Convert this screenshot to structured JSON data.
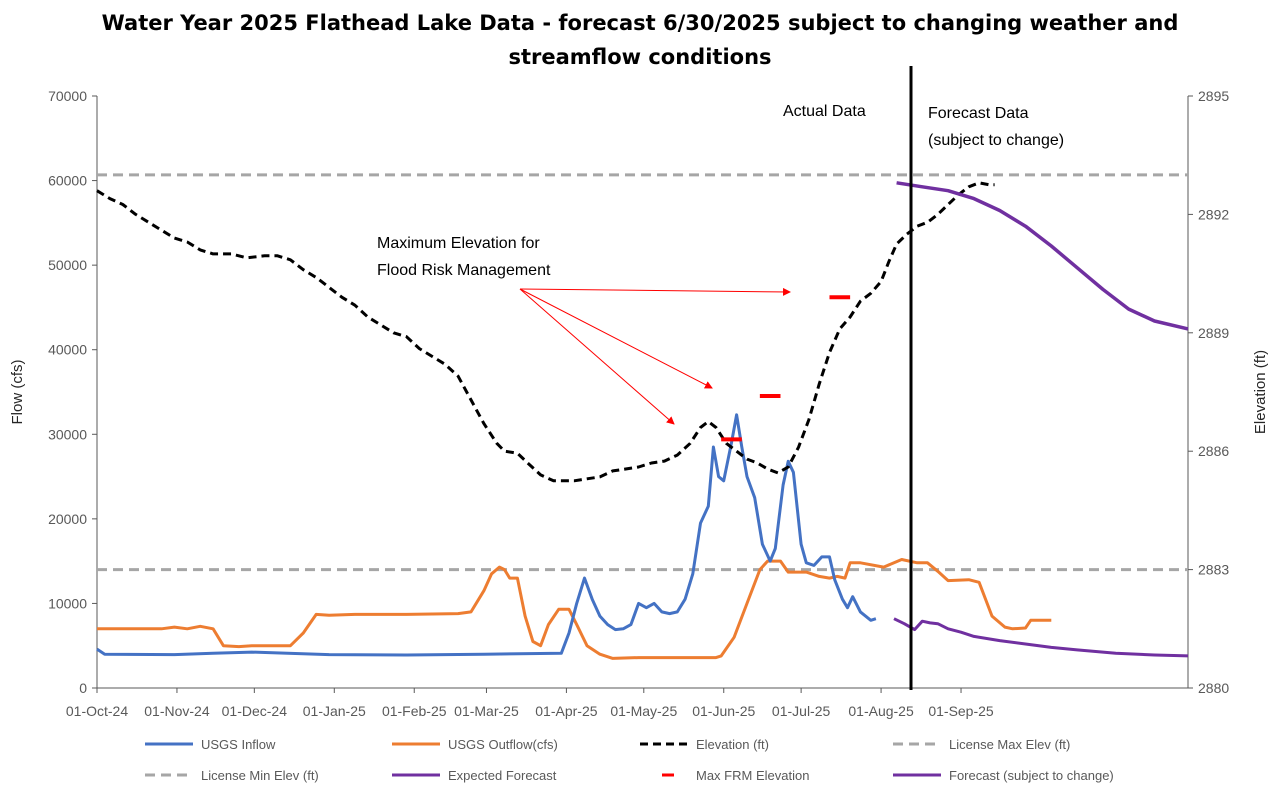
{
  "chart_data": {
    "type": "line",
    "title_line1": "Water Year 2025 Flathead Lake Data - forecast 6/30/2025 subject to changing weather and",
    "title_line2": "streamflow conditions",
    "ylabel": "Flow (cfs)",
    "y2label": "Elevation (ft)",
    "ylim": [
      0,
      70000
    ],
    "y2lim": [
      2880,
      2895
    ],
    "x_ticks": [
      "01-Oct-24",
      "01-Nov-24",
      "01-Dec-24",
      "01-Jan-25",
      "01-Feb-25",
      "01-Mar-25",
      "01-Apr-25",
      "01-May-25",
      "01-Jun-25",
      "01-Jul-25",
      "01-Aug-25",
      "01-Sep-25"
    ],
    "y_ticks": [
      "0",
      "10000",
      "20000",
      "30000",
      "40000",
      "50000",
      "60000",
      "70000"
    ],
    "y2_ticks": [
      "2880",
      "2883",
      "2886",
      "2889",
      "2892",
      "2895"
    ],
    "grid": false,
    "legend_position": "bottom",
    "annotations": {
      "actual": "Actual Data",
      "forecast_line1": "Forecast Data",
      "forecast_line2": "(subject to change)",
      "frm_line1": "Maximum Elevation for",
      "frm_line2": "Flood Risk Management"
    },
    "colors": {
      "inflow": "#4472C4",
      "outflow": "#ED7D31",
      "elevation": "#000000",
      "license": "#A6A6A6",
      "forecast": "#7030A0",
      "frm": "#FF0000"
    },
    "series": [
      {
        "name": "USGS Inflow",
        "axis": "flow",
        "points": [
          [
            0,
            4600
          ],
          [
            3,
            4000
          ],
          [
            30,
            3950
          ],
          [
            45,
            4100
          ],
          [
            60,
            4250
          ],
          [
            90,
            3950
          ],
          [
            120,
            3900
          ],
          [
            150,
            4000
          ],
          [
            180,
            4100
          ],
          [
            183,
            6500
          ],
          [
            186,
            10000
          ],
          [
            189,
            13000
          ],
          [
            192,
            10500
          ],
          [
            195,
            8500
          ],
          [
            198,
            7500
          ],
          [
            201,
            6900
          ],
          [
            204,
            7000
          ],
          [
            207,
            7500
          ],
          [
            210,
            10000
          ],
          [
            213,
            9500
          ],
          [
            216,
            10000
          ],
          [
            219,
            9000
          ],
          [
            222,
            8800
          ],
          [
            225,
            9000
          ],
          [
            228,
            10500
          ],
          [
            231,
            13500
          ],
          [
            234,
            19500
          ],
          [
            237,
            21500
          ],
          [
            239,
            28500
          ],
          [
            241,
            25000
          ],
          [
            243,
            24500
          ],
          [
            246,
            29000
          ],
          [
            248,
            32300
          ],
          [
            250,
            28500
          ],
          [
            252,
            25000
          ],
          [
            255,
            22500
          ],
          [
            258,
            17000
          ],
          [
            261,
            15000
          ],
          [
            263,
            16500
          ],
          [
            266,
            24000
          ],
          [
            268,
            26800
          ],
          [
            270,
            25500
          ],
          [
            273,
            17000
          ],
          [
            275,
            14800
          ],
          [
            278,
            14500
          ],
          [
            281,
            15500
          ],
          [
            284,
            15500
          ],
          [
            286,
            12800
          ],
          [
            289,
            10500
          ],
          [
            291,
            9500
          ],
          [
            293,
            10800
          ],
          [
            296,
            9000
          ],
          [
            300,
            8000
          ],
          [
            302,
            8200
          ]
        ]
      },
      {
        "name": "USGS Outflow(cfs)",
        "axis": "flow",
        "points": [
          [
            0,
            7000
          ],
          [
            5,
            7000
          ],
          [
            25,
            7000
          ],
          [
            30,
            7200
          ],
          [
            35,
            7000
          ],
          [
            40,
            7300
          ],
          [
            45,
            7000
          ],
          [
            49,
            5000
          ],
          [
            55,
            4900
          ],
          [
            60,
            5000
          ],
          [
            75,
            5000
          ],
          [
            80,
            6500
          ],
          [
            85,
            8700
          ],
          [
            90,
            8600
          ],
          [
            100,
            8700
          ],
          [
            120,
            8700
          ],
          [
            140,
            8800
          ],
          [
            145,
            9000
          ],
          [
            150,
            11500
          ],
          [
            153,
            13500
          ],
          [
            156,
            14300
          ],
          [
            158,
            14000
          ],
          [
            160,
            13000
          ],
          [
            163,
            13000
          ],
          [
            166,
            8500
          ],
          [
            169,
            5500
          ],
          [
            172,
            5000
          ],
          [
            175,
            7500
          ],
          [
            179,
            9300
          ],
          [
            183,
            9300
          ],
          [
            186,
            7500
          ],
          [
            190,
            5000
          ],
          [
            195,
            4000
          ],
          [
            200,
            3500
          ],
          [
            210,
            3600
          ],
          [
            220,
            3600
          ],
          [
            240,
            3600
          ],
          [
            242,
            3800
          ],
          [
            247,
            6000
          ],
          [
            252,
            10000
          ],
          [
            257,
            14000
          ],
          [
            260,
            15000
          ],
          [
            265,
            15000
          ],
          [
            268,
            13700
          ],
          [
            275,
            13700
          ],
          [
            280,
            13200
          ],
          [
            284,
            13000
          ],
          [
            287,
            13200
          ],
          [
            290,
            13000
          ],
          [
            292,
            14800
          ],
          [
            296,
            14800
          ],
          [
            305,
            14300
          ],
          [
            312,
            15200
          ],
          [
            318,
            14800
          ],
          [
            322,
            14800
          ],
          [
            326,
            13800
          ],
          [
            330,
            12700
          ],
          [
            338,
            12800
          ],
          [
            342,
            12500
          ],
          [
            347,
            8500
          ],
          [
            352,
            7200
          ],
          [
            355,
            7000
          ],
          [
            360,
            7100
          ],
          [
            362,
            8000
          ],
          [
            370,
            8000
          ]
        ]
      },
      {
        "name": "Elevation (ft)",
        "axis": "elev",
        "points": [
          [
            0,
            2892.6
          ],
          [
            5,
            2892.4
          ],
          [
            10,
            2892.25
          ],
          [
            15,
            2892.0
          ],
          [
            20,
            2891.8
          ],
          [
            25,
            2891.6
          ],
          [
            30,
            2891.4
          ],
          [
            35,
            2891.3
          ],
          [
            40,
            2891.1
          ],
          [
            45,
            2891.0
          ],
          [
            52,
            2891.0
          ],
          [
            58,
            2890.9
          ],
          [
            65,
            2890.95
          ],
          [
            70,
            2890.95
          ],
          [
            75,
            2890.85
          ],
          [
            80,
            2890.6
          ],
          [
            85,
            2890.4
          ],
          [
            90,
            2890.15
          ],
          [
            95,
            2889.9
          ],
          [
            100,
            2889.7
          ],
          [
            105,
            2889.4
          ],
          [
            110,
            2889.2
          ],
          [
            115,
            2889.0
          ],
          [
            120,
            2888.9
          ],
          [
            125,
            2888.6
          ],
          [
            130,
            2888.4
          ],
          [
            135,
            2888.2
          ],
          [
            140,
            2887.9
          ],
          [
            145,
            2887.3
          ],
          [
            150,
            2886.7
          ],
          [
            155,
            2886.2
          ],
          [
            158,
            2886.0
          ],
          [
            163,
            2885.95
          ],
          [
            167,
            2885.7
          ],
          [
            172,
            2885.4
          ],
          [
            177,
            2885.25
          ],
          [
            185,
            2885.25
          ],
          [
            190,
            2885.3
          ],
          [
            195,
            2885.35
          ],
          [
            200,
            2885.5
          ],
          [
            205,
            2885.55
          ],
          [
            210,
            2885.6
          ],
          [
            215,
            2885.7
          ],
          [
            220,
            2885.75
          ],
          [
            225,
            2885.9
          ],
          [
            230,
            2886.2
          ],
          [
            234,
            2886.6
          ],
          [
            237,
            2886.75
          ],
          [
            240,
            2886.6
          ],
          [
            244,
            2886.2
          ],
          [
            248,
            2886.0
          ],
          [
            252,
            2885.8
          ],
          [
            256,
            2885.7
          ],
          [
            260,
            2885.55
          ],
          [
            264,
            2885.45
          ],
          [
            268,
            2885.6
          ],
          [
            272,
            2886.1
          ],
          [
            276,
            2886.8
          ],
          [
            280,
            2887.7
          ],
          [
            284,
            2888.5
          ],
          [
            288,
            2889.1
          ],
          [
            292,
            2889.4
          ],
          [
            296,
            2889.8
          ],
          [
            300,
            2890.0
          ],
          [
            304,
            2890.3
          ],
          [
            307,
            2890.8
          ],
          [
            310,
            2891.25
          ],
          [
            314,
            2891.5
          ],
          [
            318,
            2891.7
          ],
          [
            322,
            2891.8
          ],
          [
            326,
            2892.0
          ],
          [
            330,
            2892.25
          ],
          [
            334,
            2892.5
          ],
          [
            338,
            2892.7
          ],
          [
            342,
            2892.8
          ],
          [
            346,
            2892.75
          ],
          [
            348,
            2892.75
          ]
        ]
      },
      {
        "name": "License Max Elev (ft)",
        "axis": "elev",
        "points": [
          [
            0,
            2893
          ],
          [
            423,
            2893
          ]
        ]
      },
      {
        "name": "License Min Elev (ft)",
        "axis": "elev",
        "points": [
          [
            0,
            2883
          ],
          [
            423,
            2883
          ]
        ]
      },
      {
        "name": "Expected Forecast",
        "axis": "flow",
        "points": [
          [
            309,
            8200
          ],
          [
            313,
            7600
          ],
          [
            317,
            6900
          ],
          [
            320,
            7900
          ],
          [
            323,
            7700
          ],
          [
            326,
            7600
          ],
          [
            330,
            7000
          ],
          [
            335,
            6600
          ],
          [
            340,
            6100
          ],
          [
            350,
            5600
          ],
          [
            360,
            5200
          ],
          [
            370,
            4800
          ],
          [
            380,
            4500
          ],
          [
            395,
            4100
          ],
          [
            410,
            3900
          ],
          [
            423,
            3800
          ]
        ]
      },
      {
        "name": "Max FRM Elevation",
        "axis": "elev",
        "segments": [
          [
            242,
            250,
            2886.3
          ],
          [
            257,
            265,
            2887.4
          ],
          [
            284,
            292,
            2889.9
          ]
        ]
      },
      {
        "name": "Forecast (subject to change)",
        "axis": "elev",
        "points": [
          [
            310,
            2892.8
          ],
          [
            320,
            2892.7
          ],
          [
            330,
            2892.6
          ],
          [
            340,
            2892.4
          ],
          [
            350,
            2892.1
          ],
          [
            360,
            2891.7
          ],
          [
            370,
            2891.2
          ],
          [
            380,
            2890.65
          ],
          [
            390,
            2890.1
          ],
          [
            400,
            2889.6
          ],
          [
            410,
            2889.3
          ],
          [
            423,
            2889.1
          ]
        ]
      }
    ]
  }
}
